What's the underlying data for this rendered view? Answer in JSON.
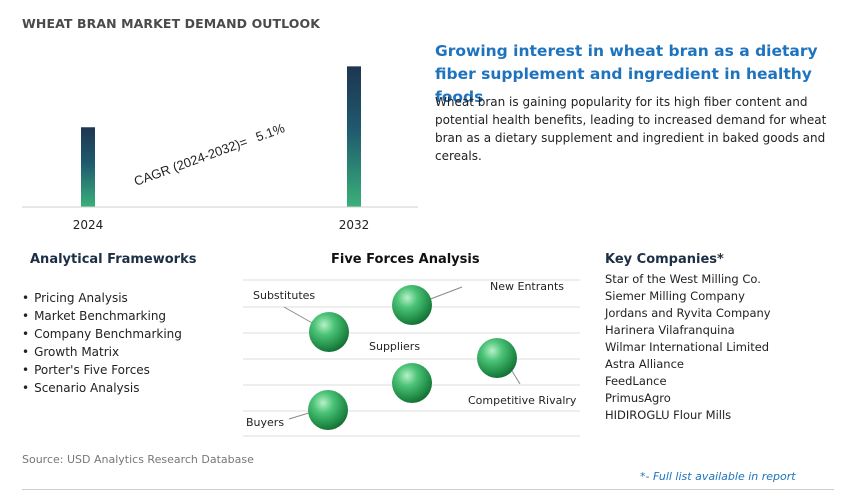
{
  "header": {
    "title": "WHEAT BRAN MARKET DEMAND OUTLOOK"
  },
  "chart_data": {
    "type": "bar",
    "categories": [
      "2024",
      "2032"
    ],
    "values": [
      0.55,
      0.97
    ],
    "value_scale": "relative (bars unlabeled)",
    "ylim": [
      0,
      1
    ],
    "annotation": {
      "label": "CAGR (2024-2032)=",
      "value": "5.1%"
    },
    "bar_gradient": [
      "#3ab07a",
      "#1f5a6e",
      "#1e3550"
    ],
    "grid": false
  },
  "highlight": {
    "heading": "Growing interest in wheat bran as a dietary fiber supplement and ingredient in healthy foods",
    "description": "Wheat bran is gaining popularity for its high fiber content and potential health benefits, leading to increased demand for wheat bran as a dietary supplement and ingredient in baked goods and cereals."
  },
  "frameworks": {
    "title": "Analytical Frameworks",
    "items": [
      "Pricing Analysis",
      "Market Benchmarking",
      "Company Benchmarking",
      "Growth Matrix",
      "Porter's Five Forces",
      "Scenario Analysis"
    ]
  },
  "five_forces": {
    "title": "Five Forces Analysis",
    "labels": {
      "substitutes": "Substitutes",
      "new_entrants": "New Entrants",
      "suppliers": "Suppliers",
      "competitive_rivalry": "Competitive Rivalry",
      "buyers": "Buyers"
    },
    "sphere_color": "#2fa65a"
  },
  "companies": {
    "title": "Key Companies*",
    "items": [
      "Star of the West Milling Co.",
      "Siemer Milling Company",
      "Jordans and Ryvita Company",
      "Harinera Vilafranquina",
      "Wilmar International Limited",
      "Astra Alliance",
      "FeedLance",
      "PrimusAgro",
      "HIDIROGLU Flour Mills"
    ]
  },
  "footer": {
    "source": "Source: USD Analytics Research Database",
    "note": "*- Full list available in report"
  }
}
